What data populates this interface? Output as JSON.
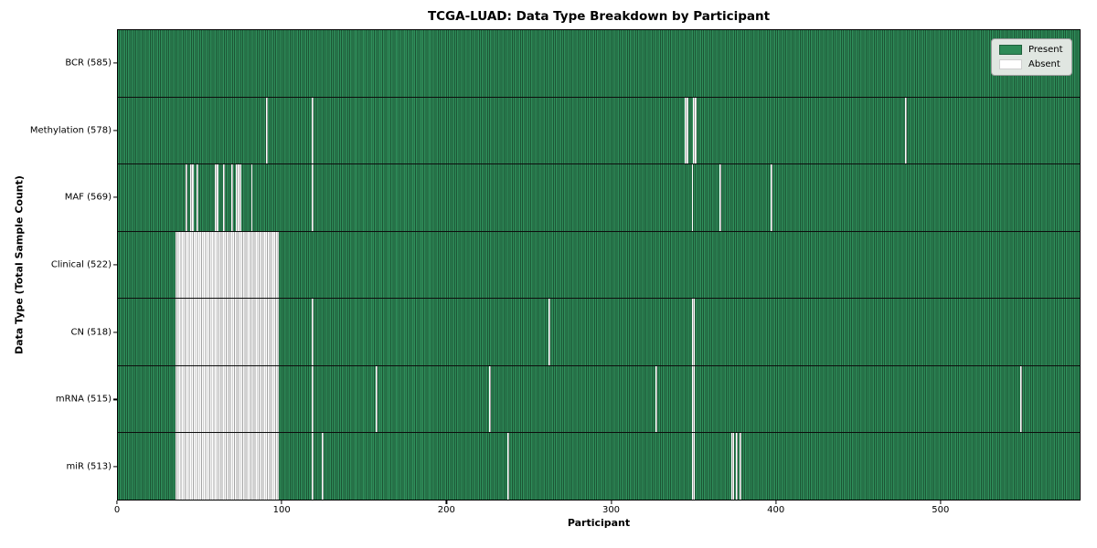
{
  "chart_data": {
    "type": "heatmap",
    "title": "TCGA-LUAD: Data Type Breakdown by Participant",
    "xlabel": "Participant",
    "ylabel": "Data Type (Total Sample Count)",
    "n_participants": 585,
    "x_range": [
      0,
      585
    ],
    "x_ticks": [
      0,
      100,
      200,
      300,
      400,
      500
    ],
    "grid": false,
    "legend_position": "upper right",
    "legend": {
      "present_label": "Present",
      "absent_label": "Absent"
    },
    "colors": {
      "present": "#2e8b57",
      "present_edge": "#1c5434",
      "absent": "#ffffff",
      "absent_edge": "#a3a3a3",
      "legend_bg": "#e0e6e1",
      "legend_border": "#9c9c9c"
    },
    "rows": [
      {
        "label": "BCR (585)",
        "data_type": "BCR",
        "present_count": 585,
        "absent_runs": []
      },
      {
        "label": "Methylation (578)",
        "data_type": "Methylation",
        "present_count": 578,
        "absent_runs": [
          [
            90,
            90
          ],
          [
            118,
            118
          ],
          [
            345,
            346
          ],
          [
            350,
            351
          ],
          [
            479,
            479
          ]
        ]
      },
      {
        "label": "MAF (569)",
        "data_type": "MAF",
        "present_count": 569,
        "absent_runs": [
          [
            41,
            41
          ],
          [
            44,
            45
          ],
          [
            48,
            48
          ],
          [
            59,
            60
          ],
          [
            64,
            64
          ],
          [
            69,
            69
          ],
          [
            72,
            74
          ],
          [
            81,
            81
          ],
          [
            118,
            118
          ],
          [
            349,
            349
          ],
          [
            366,
            366
          ],
          [
            397,
            397
          ]
        ]
      },
      {
        "label": "Clinical (522)",
        "data_type": "Clinical",
        "present_count": 522,
        "absent_runs": [
          [
            35,
            97
          ]
        ]
      },
      {
        "label": "CN (518)",
        "data_type": "CN",
        "present_count": 518,
        "absent_runs": [
          [
            35,
            97
          ],
          [
            118,
            118
          ],
          [
            262,
            262
          ],
          [
            349,
            350
          ]
        ]
      },
      {
        "label": "mRNA (515)",
        "data_type": "mRNA",
        "present_count": 515,
        "absent_runs": [
          [
            35,
            97
          ],
          [
            118,
            118
          ],
          [
            157,
            157
          ],
          [
            226,
            226
          ],
          [
            327,
            327
          ],
          [
            349,
            350
          ],
          [
            549,
            549
          ]
        ]
      },
      {
        "label": "miR (513)",
        "data_type": "miR",
        "present_count": 513,
        "absent_runs": [
          [
            35,
            97
          ],
          [
            118,
            118
          ],
          [
            124,
            124
          ],
          [
            237,
            237
          ],
          [
            349,
            350
          ],
          [
            373,
            374
          ],
          [
            376,
            376
          ],
          [
            378,
            378
          ]
        ]
      }
    ]
  }
}
